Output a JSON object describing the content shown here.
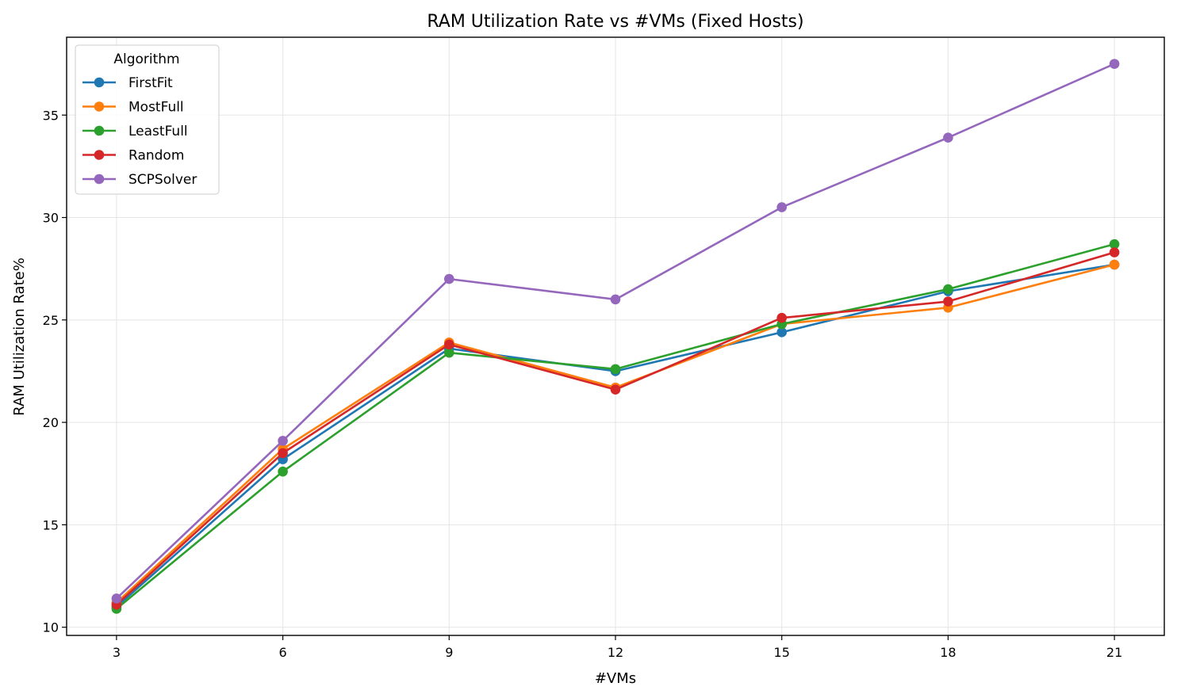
{
  "chart_data": {
    "type": "line",
    "title": "RAM Utilization Rate vs #VMs (Fixed Hosts)",
    "xlabel": "#VMs",
    "ylabel": "RAM Utilization Rate%",
    "x": [
      3,
      6,
      9,
      12,
      15,
      18,
      21
    ],
    "xlim": [
      2.1,
      21.9
    ],
    "ylim": [
      9.6,
      38.8
    ],
    "xticks": [
      3,
      6,
      9,
      12,
      15,
      18,
      21
    ],
    "yticks": [
      10,
      15,
      20,
      25,
      30,
      35
    ],
    "grid": true,
    "legend": {
      "title": "Algorithm",
      "placement": "top-left"
    },
    "series": [
      {
        "name": "FirstFit",
        "color": "#1f77b4",
        "values": [
          11.0,
          18.2,
          23.6,
          22.5,
          24.4,
          26.4,
          27.7
        ]
      },
      {
        "name": "MostFull",
        "color": "#ff7f0e",
        "values": [
          11.2,
          18.7,
          23.9,
          21.7,
          24.8,
          25.6,
          27.7
        ]
      },
      {
        "name": "LeastFull",
        "color": "#2ca02c",
        "values": [
          10.9,
          17.6,
          23.4,
          22.6,
          24.8,
          26.5,
          28.7
        ]
      },
      {
        "name": "Random",
        "color": "#d62728",
        "values": [
          11.1,
          18.5,
          23.8,
          21.6,
          25.1,
          25.9,
          28.3
        ]
      },
      {
        "name": "SCPSolver",
        "color": "#9467bd",
        "values": [
          11.4,
          19.1,
          27.0,
          26.0,
          30.5,
          33.9,
          37.5
        ]
      }
    ]
  }
}
